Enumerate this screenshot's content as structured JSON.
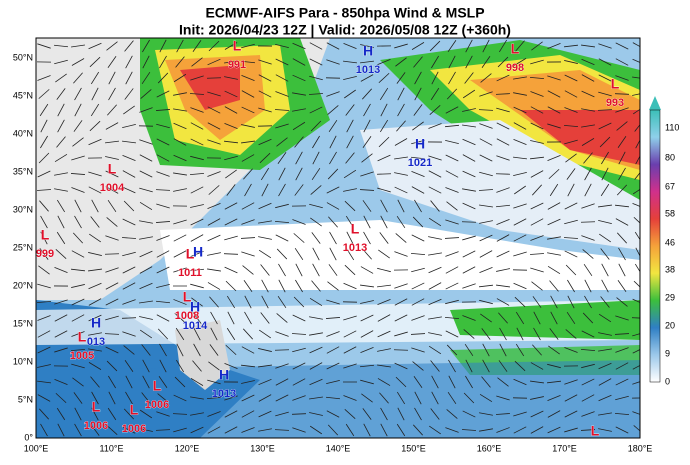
{
  "header": {
    "title": "ECMWF-AIFS Para  - 850hpa Wind & MSLP",
    "subtitle": "Init: 2026/04/23 12Z | Valid: 2026/05/08 12Z (+360h)"
  },
  "map": {
    "lon_labels": [
      "100°E",
      "110°E",
      "120°E",
      "130°E",
      "140°E",
      "150°E",
      "160°E",
      "170°E",
      "180°E"
    ],
    "lat_labels": [
      "0°",
      "5°N",
      "10°N",
      "15°N",
      "20°N",
      "25°N",
      "30°N",
      "35°N",
      "40°N",
      "45°N",
      "50°N"
    ],
    "pressure_centers": [
      {
        "type": "L",
        "value": "991"
      },
      {
        "type": "H",
        "value": "1013"
      },
      {
        "type": "L",
        "value": "998"
      },
      {
        "type": "L",
        "value": "993"
      },
      {
        "type": "H",
        "value": "1021"
      },
      {
        "type": "L",
        "value": "1004"
      },
      {
        "type": "L",
        "value": "999"
      },
      {
        "type": "L",
        "value": "1013"
      },
      {
        "type": "H"
      },
      {
        "type": "L",
        "value": "1011"
      },
      {
        "type": "L",
        "value": "1008"
      },
      {
        "type": "H",
        "value": "1014"
      },
      {
        "type": "H",
        "value": "013"
      },
      {
        "type": "L",
        "value": "1005"
      },
      {
        "type": "H",
        "value": "1013"
      },
      {
        "type": "L",
        "value": "1006"
      },
      {
        "type": "L",
        "value": "1006"
      },
      {
        "type": "L",
        "value": "1006"
      },
      {
        "type": "L"
      }
    ]
  },
  "colorbar": {
    "ticks": [
      "110",
      "80",
      "67",
      "58",
      "46",
      "38",
      "29",
      "20",
      "9",
      "0"
    ]
  }
}
